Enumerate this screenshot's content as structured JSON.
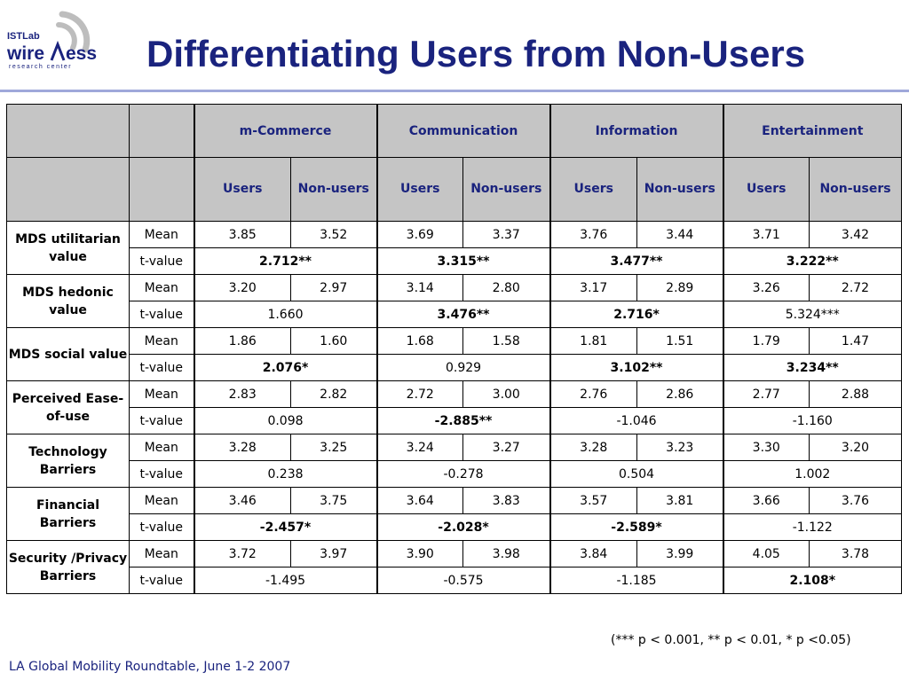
{
  "logo": {
    "top_text": "ISTLab",
    "word_left": "wire",
    "word_right": "ess",
    "sub_text": "research center"
  },
  "title": "Differentiating Users from Non-Users",
  "table": {
    "groups": [
      "m-Commerce",
      "Communication",
      "Information",
      "Entertainment"
    ],
    "subheaders": [
      "Users",
      "Non-users",
      "Users",
      "Non-users",
      "Users",
      "Non-users",
      "Users",
      "Non-users"
    ],
    "stat_labels": {
      "mean": "Mean",
      "tvalue": "t-value"
    },
    "rows": [
      {
        "category": "MDS utilitarian value",
        "means": [
          "3.85",
          "3.52",
          "3.69",
          "3.37",
          "3.76",
          "3.44",
          "3.71",
          "3.42"
        ],
        "tvalues": [
          {
            "v": "2.712**",
            "bold": true
          },
          {
            "v": "3.315**",
            "bold": true
          },
          {
            "v": "3.477**",
            "bold": true
          },
          {
            "v": "3.222**",
            "bold": true
          }
        ]
      },
      {
        "category": "MDS hedonic value",
        "means": [
          "3.20",
          "2.97",
          "3.14",
          "2.80",
          "3.17",
          "2.89",
          "3.26",
          "2.72"
        ],
        "tvalues": [
          {
            "v": "1.660",
            "bold": false
          },
          {
            "v": "3.476**",
            "bold": true
          },
          {
            "v": "2.716*",
            "bold": true
          },
          {
            "v": "5.324***",
            "bold": false
          }
        ]
      },
      {
        "category": "MDS social value",
        "means": [
          "1.86",
          "1.60",
          "1.68",
          "1.58",
          "1.81",
          "1.51",
          "1.79",
          "1.47"
        ],
        "tvalues": [
          {
            "v": "2.076*",
            "bold": true
          },
          {
            "v": "0.929",
            "bold": false
          },
          {
            "v": "3.102**",
            "bold": true
          },
          {
            "v": "3.234**",
            "bold": true
          }
        ]
      },
      {
        "category": "Perceived Ease-of-use",
        "means": [
          "2.83",
          "2.82",
          "2.72",
          "3.00",
          "2.76",
          "2.86",
          "2.77",
          "2.88"
        ],
        "tvalues": [
          {
            "v": "0.098",
            "bold": false
          },
          {
            "v": "-2.885**",
            "bold": true
          },
          {
            "v": "-1.046",
            "bold": false
          },
          {
            "v": "-1.160",
            "bold": false
          }
        ]
      },
      {
        "category": "Technology Barriers",
        "means": [
          "3.28",
          "3.25",
          "3.24",
          "3.27",
          "3.28",
          "3.23",
          "3.30",
          "3.20"
        ],
        "tvalues": [
          {
            "v": "0.238",
            "bold": false
          },
          {
            "v": "-0.278",
            "bold": false
          },
          {
            "v": "0.504",
            "bold": false
          },
          {
            "v": "1.002",
            "bold": false
          }
        ]
      },
      {
        "category": "Financial Barriers",
        "means": [
          "3.46",
          "3.75",
          "3.64",
          "3.83",
          "3.57",
          "3.81",
          "3.66",
          "3.76"
        ],
        "tvalues": [
          {
            "v": "-2.457*",
            "bold": true
          },
          {
            "v": "-2.028*",
            "bold": true
          },
          {
            "v": "-2.589*",
            "bold": true
          },
          {
            "v": "-1.122",
            "bold": false
          }
        ]
      },
      {
        "category": "Security /Privacy Barriers",
        "means": [
          "3.72",
          "3.97",
          "3.90",
          "3.98",
          "3.84",
          "3.99",
          "4.05",
          "3.78"
        ],
        "tvalues": [
          {
            "v": "-1.495",
            "bold": false
          },
          {
            "v": "-0.575",
            "bold": false
          },
          {
            "v": "-1.185",
            "bold": false
          },
          {
            "v": "2.108*",
            "bold": true
          }
        ]
      }
    ]
  },
  "footnote": "(*** p < 0.001, ** p < 0.01, * p <0.05)",
  "footer": "LA Global Mobility Roundtable, June 1-2 2007",
  "colors": {
    "title": "#1a237e",
    "header_bg": "#c5c5c5",
    "rule": "#9fa8da"
  }
}
